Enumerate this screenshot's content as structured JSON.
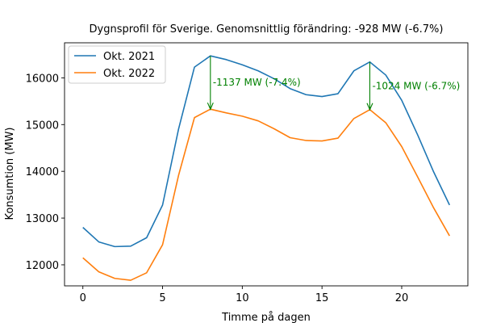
{
  "chart_data": {
    "type": "line",
    "title": "Dygnsprofil för Sverige. Genomsnittlig förändring: -928 MW (-6.7%)",
    "xlabel": "Timme på dagen",
    "ylabel": "Konsumtion (MW)",
    "xlim": [
      -1.15,
      24.15
    ],
    "ylim": [
      11550,
      16750
    ],
    "xticks": [
      0,
      5,
      10,
      15,
      20
    ],
    "yticks": [
      12000,
      13000,
      14000,
      15000,
      16000
    ],
    "grid": false,
    "legend_position": "top-left",
    "x": [
      0,
      1,
      2,
      3,
      4,
      5,
      6,
      7,
      8,
      9,
      10,
      11,
      12,
      13,
      14,
      15,
      16,
      17,
      18,
      19,
      20,
      21,
      22,
      23
    ],
    "series": [
      {
        "name": "Okt. 2021",
        "color": "#1f77b4",
        "values": [
          12800,
          12490,
          12390,
          12400,
          12580,
          13280,
          14900,
          16230,
          16470,
          16390,
          16280,
          16150,
          15980,
          15770,
          15640,
          15600,
          15660,
          16150,
          16340,
          16060,
          15520,
          14780,
          13990,
          13280
        ]
      },
      {
        "name": "Okt. 2022",
        "color": "#ff7f0e",
        "values": [
          12150,
          11850,
          11710,
          11670,
          11830,
          12430,
          13910,
          15150,
          15330,
          15250,
          15180,
          15080,
          14910,
          14720,
          14660,
          14650,
          14710,
          15130,
          15320,
          15040,
          14530,
          13880,
          13220,
          12620
        ]
      }
    ],
    "annotations": [
      {
        "text": "-1137 MW (-7.4%)",
        "x": 8,
        "y_from": 16470,
        "y_to": 15330,
        "color": "#008000"
      },
      {
        "text": "-1024 MW (-6.7%)",
        "x": 18,
        "y_from": 16340,
        "y_to": 15320,
        "color": "#008000"
      }
    ]
  }
}
